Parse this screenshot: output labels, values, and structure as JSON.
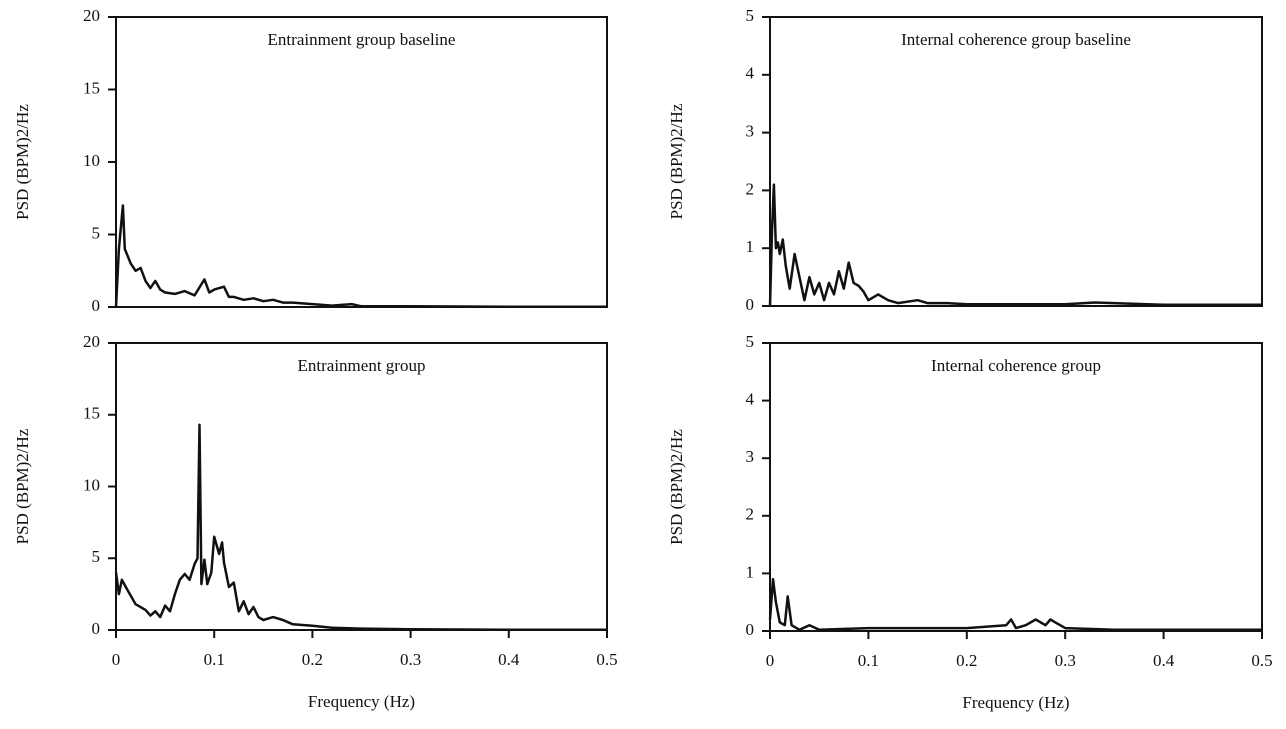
{
  "chart_data": [
    {
      "type": "line",
      "title": "Entrainment group baseline",
      "y_label": "PSD (BPM)2/Hz",
      "color": "#111111",
      "xlim": [
        0,
        0.5
      ],
      "ylim": [
        0,
        20
      ],
      "yticks": [
        0,
        5,
        10,
        15,
        20
      ],
      "x": [
        0,
        0.003,
        0.005,
        0.007,
        0.009,
        0.012,
        0.015,
        0.02,
        0.025,
        0.03,
        0.035,
        0.04,
        0.045,
        0.05,
        0.06,
        0.07,
        0.08,
        0.09,
        0.095,
        0.1,
        0.11,
        0.115,
        0.12,
        0.13,
        0.14,
        0.15,
        0.16,
        0.17,
        0.18,
        0.2,
        0.22,
        0.24,
        0.25,
        0.3,
        0.4,
        0.5
      ],
      "values": [
        0,
        4,
        5.5,
        7,
        4,
        3.5,
        3,
        2.5,
        2.7,
        1.8,
        1.3,
        1.8,
        1.2,
        1.0,
        0.9,
        1.1,
        0.8,
        1.9,
        1.0,
        1.2,
        1.4,
        0.7,
        0.7,
        0.5,
        0.6,
        0.4,
        0.5,
        0.3,
        0.3,
        0.2,
        0.1,
        0.2,
        0.05,
        0.05,
        0.02,
        0.02
      ]
    },
    {
      "type": "line",
      "title": "Internal coherence group baseline",
      "y_label": "PSD (BPM)2/Hz",
      "color": "#111111",
      "xlim": [
        0,
        0.5
      ],
      "ylim": [
        0,
        5
      ],
      "yticks": [
        0,
        1,
        2,
        3,
        4,
        5
      ],
      "x": [
        0,
        0.002,
        0.004,
        0.006,
        0.008,
        0.01,
        0.013,
        0.016,
        0.02,
        0.025,
        0.03,
        0.035,
        0.04,
        0.045,
        0.05,
        0.055,
        0.06,
        0.065,
        0.07,
        0.075,
        0.08,
        0.085,
        0.09,
        0.095,
        0.1,
        0.11,
        0.12,
        0.13,
        0.15,
        0.16,
        0.18,
        0.2,
        0.25,
        0.3,
        0.33,
        0.4,
        0.5
      ],
      "values": [
        0,
        1.3,
        2.1,
        1.0,
        1.1,
        0.9,
        1.15,
        0.7,
        0.3,
        0.9,
        0.5,
        0.1,
        0.5,
        0.2,
        0.4,
        0.1,
        0.4,
        0.2,
        0.6,
        0.3,
        0.75,
        0.4,
        0.35,
        0.25,
        0.1,
        0.2,
        0.1,
        0.05,
        0.1,
        0.05,
        0.05,
        0.03,
        0.03,
        0.03,
        0.06,
        0.02,
        0.02
      ]
    },
    {
      "type": "line",
      "title": "Entrainment group",
      "y_label": "PSD (BPM)2/Hz",
      "x_label": "Frequency (Hz)",
      "color": "#111111",
      "xlim": [
        0,
        0.5
      ],
      "ylim": [
        0,
        20
      ],
      "yticks": [
        0,
        5,
        10,
        15,
        20
      ],
      "xticks": [
        0,
        0.1,
        0.2,
        0.3,
        0.4,
        0.5
      ],
      "x": [
        0,
        0.003,
        0.006,
        0.01,
        0.02,
        0.03,
        0.035,
        0.04,
        0.045,
        0.05,
        0.055,
        0.06,
        0.065,
        0.07,
        0.075,
        0.08,
        0.083,
        0.085,
        0.087,
        0.09,
        0.093,
        0.097,
        0.1,
        0.105,
        0.108,
        0.11,
        0.115,
        0.12,
        0.125,
        0.13,
        0.135,
        0.14,
        0.145,
        0.15,
        0.16,
        0.17,
        0.18,
        0.2,
        0.22,
        0.25,
        0.3,
        0.4,
        0.5
      ],
      "values": [
        4,
        2.5,
        3.5,
        3,
        1.8,
        1.4,
        1.0,
        1.3,
        0.9,
        1.7,
        1.3,
        2.5,
        3.5,
        3.9,
        3.5,
        4.6,
        5,
        14.3,
        3.2,
        4.9,
        3.2,
        4,
        6.5,
        5.3,
        6.1,
        4.7,
        3,
        3.3,
        1.3,
        2,
        1.1,
        1.6,
        0.9,
        0.7,
        0.9,
        0.7,
        0.4,
        0.3,
        0.15,
        0.1,
        0.05,
        0.02,
        0.02
      ]
    },
    {
      "type": "line",
      "title": "Internal coherence group",
      "y_label": "PSD (BPM)2/Hz",
      "x_label": "Frequency (Hz)",
      "color": "#111111",
      "xlim": [
        0,
        0.5
      ],
      "ylim": [
        0,
        5
      ],
      "yticks": [
        0,
        1,
        2,
        3,
        4,
        5
      ],
      "xticks": [
        0,
        0.1,
        0.2,
        0.3,
        0.4,
        0.5
      ],
      "x": [
        0,
        0.003,
        0.006,
        0.01,
        0.015,
        0.018,
        0.022,
        0.03,
        0.04,
        0.05,
        0.1,
        0.15,
        0.2,
        0.24,
        0.245,
        0.25,
        0.26,
        0.27,
        0.28,
        0.285,
        0.29,
        0.3,
        0.35,
        0.4,
        0.5
      ],
      "values": [
        0.2,
        0.9,
        0.5,
        0.15,
        0.1,
        0.6,
        0.1,
        0.02,
        0.1,
        0.02,
        0.05,
        0.05,
        0.05,
        0.1,
        0.2,
        0.05,
        0.1,
        0.2,
        0.1,
        0.2,
        0.15,
        0.05,
        0.02,
        0.02,
        0.02
      ]
    }
  ]
}
